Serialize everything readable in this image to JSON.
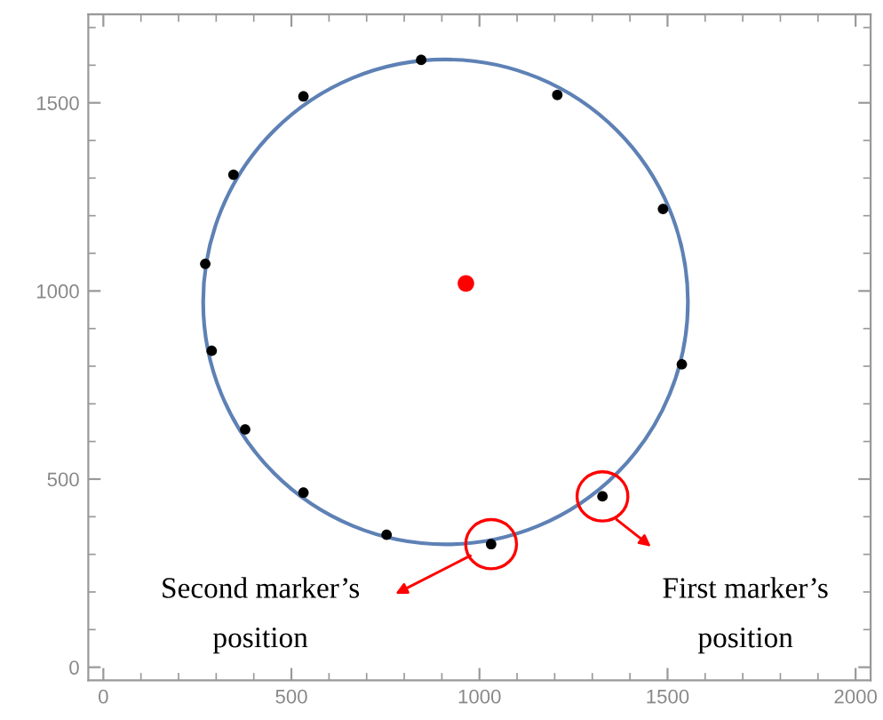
{
  "chart_data": {
    "type": "scatter",
    "xlim": [
      -40,
      2040
    ],
    "ylim": [
      -35,
      1735
    ],
    "xticks": [
      0,
      500,
      1000,
      1500,
      2000
    ],
    "yticks": [
      0,
      500,
      1000,
      1500
    ],
    "grid": false,
    "legend": false,
    "series": [
      {
        "color": "#000000",
        "marker": "circle",
        "x": [
          845,
          532,
          1207,
          346,
          1488,
          271,
          288,
          1538,
          377,
          532,
          753,
          1031,
          1327
        ],
        "values": [
          1614,
          1517,
          1521,
          1309,
          1218,
          1072,
          841,
          805,
          632,
          464,
          352,
          327,
          454
        ]
      },
      {
        "color": "#ff0000",
        "marker": "circle",
        "x": [
          964
        ],
        "values": [
          1020
        ]
      }
    ],
    "annotations": [
      "Second marker’s\nposition",
      "First marker’s\nposition"
    ]
  }
}
